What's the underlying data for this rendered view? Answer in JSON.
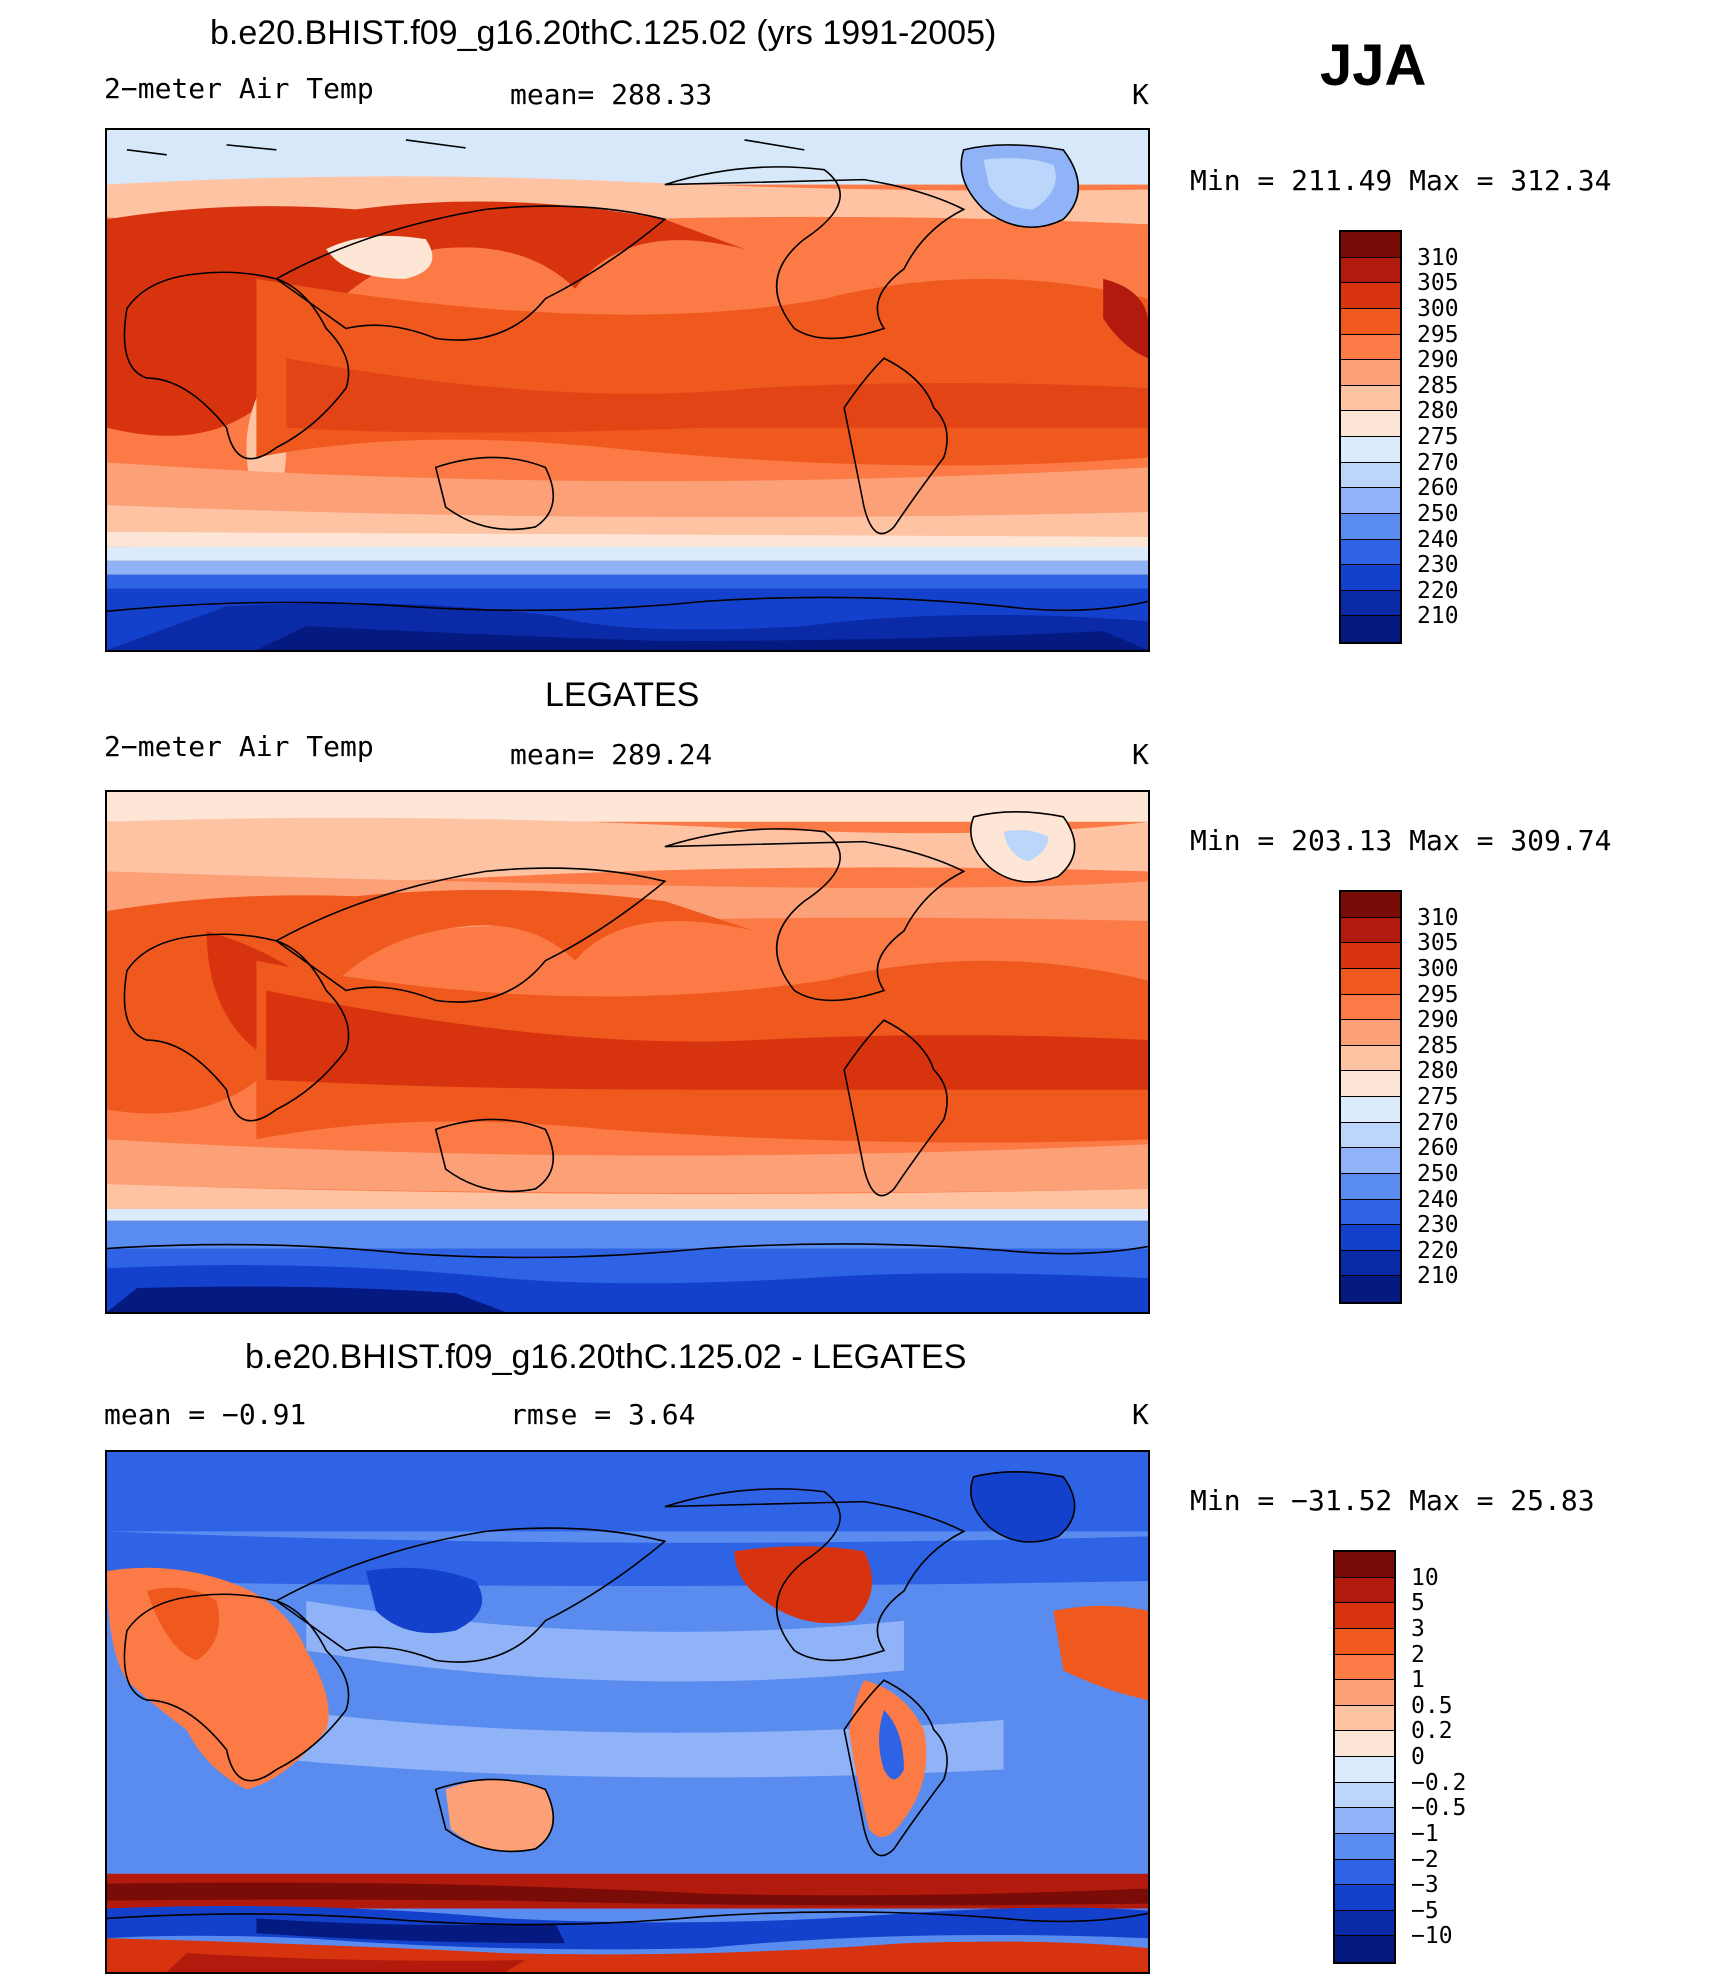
{
  "season": "JJA",
  "panels": [
    {
      "title": "b.e20.BHIST.f09_g16.20thC.125.02 (yrs 1991-2005)",
      "left_label": "2−meter Air Temp",
      "mid_label": "mean=  288.33",
      "unit": "K",
      "minmax": "Min  =  211.49  Max  =  312.34",
      "colorbar": {
        "labels": [
          "310",
          "305",
          "300",
          "295",
          "290",
          "285",
          "280",
          "275",
          "270",
          "260",
          "250",
          "240",
          "230",
          "220",
          "210"
        ],
        "colors": [
          "#7a0c07",
          "#b11a0c",
          "#d8330f",
          "#f0591e",
          "#fb7a45",
          "#fca078",
          "#fdc3a3",
          "#fde6d6",
          "#dcebfb",
          "#bcd5fa",
          "#8fb3f6",
          "#5a8cf0",
          "#2f63e5",
          "#1441cc",
          "#0a2aa8",
          "#041a80"
        ]
      },
      "map_kind": "model"
    },
    {
      "title": "LEGATES",
      "left_label": "2−meter Air Temp",
      "mid_label": "mean=  289.24",
      "unit": "K",
      "minmax": "Min  =  203.13  Max  =  309.74",
      "colorbar": {
        "labels": [
          "310",
          "305",
          "300",
          "295",
          "290",
          "285",
          "280",
          "275",
          "270",
          "260",
          "250",
          "240",
          "230",
          "220",
          "210"
        ],
        "colors": [
          "#7a0c07",
          "#b11a0c",
          "#d8330f",
          "#f0591e",
          "#fb7a45",
          "#fca078",
          "#fdc3a3",
          "#fde6d6",
          "#dcebfb",
          "#bcd5fa",
          "#8fb3f6",
          "#5a8cf0",
          "#2f63e5",
          "#1441cc",
          "#0a2aa8",
          "#041a80"
        ]
      },
      "map_kind": "obs"
    },
    {
      "title": "b.e20.BHIST.f09_g16.20thC.125.02 - LEGATES",
      "left_label": "mean =    −0.91",
      "mid_label": "rmse =     3.64",
      "unit": "K",
      "minmax": "Min  =  −31.52  Max  =    25.83",
      "colorbar": {
        "labels": [
          "10",
          "5",
          "3",
          "2",
          "1",
          "0.5",
          "0.2",
          "0",
          "−0.2",
          "−0.5",
          "−1",
          "−2",
          "−3",
          "−5",
          "−10"
        ],
        "colors": [
          "#7a0c07",
          "#b11a0c",
          "#d8330f",
          "#f0591e",
          "#fb7a45",
          "#fca078",
          "#fdc3a3",
          "#fde6d6",
          "#dcebfb",
          "#bcd5fa",
          "#8fb3f6",
          "#5a8cf0",
          "#2f63e5",
          "#1441cc",
          "#0a2aa8",
          "#041a80"
        ]
      },
      "map_kind": "diff"
    }
  ]
}
